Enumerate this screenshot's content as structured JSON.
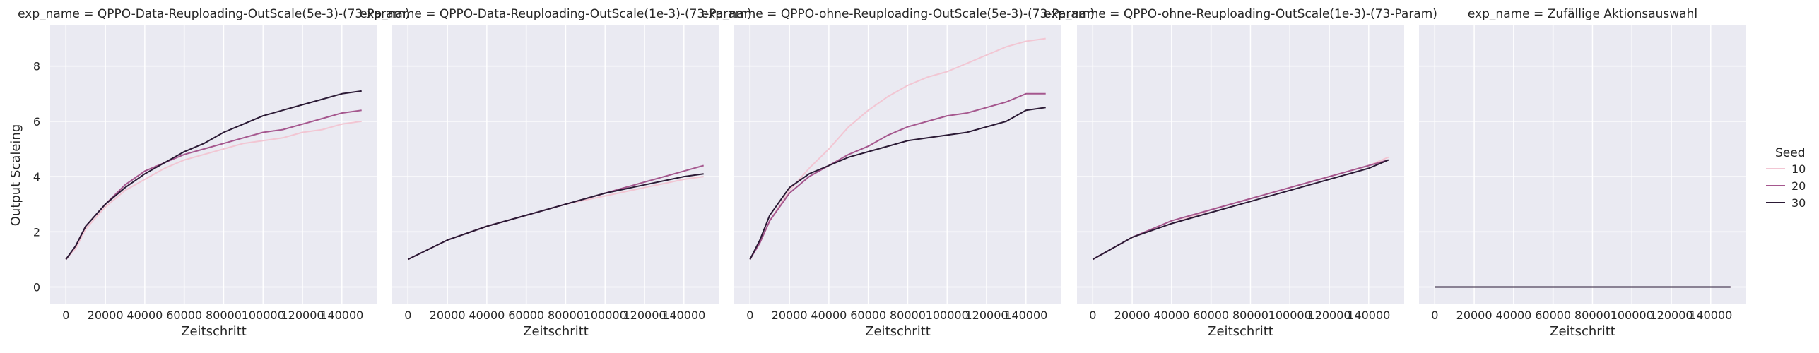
{
  "chart_data": {
    "type": "line",
    "ylabel": "Output Scaleing",
    "xlabel": "Zeitschritt",
    "xlim": [
      -8000,
      158000
    ],
    "ylim": [
      -0.6,
      9.5
    ],
    "xticks": [
      0,
      20000,
      40000,
      60000,
      80000,
      100000,
      120000,
      140000
    ],
    "yticks": [
      0,
      2,
      4,
      6,
      8
    ],
    "grid": true,
    "legend": {
      "title": "Seed",
      "placement": "right",
      "entries": [
        {
          "label": "10",
          "color": "#f2c6d3"
        },
        {
          "label": "20",
          "color": "#a5578e"
        },
        {
          "label": "30",
          "color": "#2b1a35"
        }
      ]
    },
    "panels": [
      {
        "title": "exp_name = QPPO-Data-Reuploading-OutScale(5e-3)-(73-Param)",
        "series": [
          {
            "name": "10",
            "x": [
              0,
              5000,
              10000,
              20000,
              30000,
              40000,
              50000,
              60000,
              70000,
              80000,
              90000,
              100000,
              110000,
              120000,
              130000,
              140000,
              150000
            ],
            "y": [
              1.0,
              1.4,
              2.1,
              2.9,
              3.5,
              3.9,
              4.3,
              4.6,
              4.8,
              5.0,
              5.2,
              5.3,
              5.4,
              5.6,
              5.7,
              5.9,
              6.0
            ]
          },
          {
            "name": "20",
            "x": [
              0,
              5000,
              10000,
              20000,
              30000,
              40000,
              50000,
              60000,
              70000,
              80000,
              90000,
              100000,
              110000,
              120000,
              130000,
              140000,
              150000
            ],
            "y": [
              1.0,
              1.5,
              2.2,
              3.0,
              3.7,
              4.2,
              4.5,
              4.8,
              5.0,
              5.2,
              5.4,
              5.6,
              5.7,
              5.9,
              6.1,
              6.3,
              6.4
            ]
          },
          {
            "name": "30",
            "x": [
              0,
              5000,
              10000,
              20000,
              30000,
              40000,
              50000,
              60000,
              70000,
              80000,
              90000,
              100000,
              110000,
              120000,
              130000,
              140000,
              150000
            ],
            "y": [
              1.0,
              1.5,
              2.2,
              3.0,
              3.6,
              4.1,
              4.5,
              4.9,
              5.2,
              5.6,
              5.9,
              6.2,
              6.4,
              6.6,
              6.8,
              7.0,
              7.1
            ]
          }
        ]
      },
      {
        "title": "exp_name = QPPO-Data-Reuploading-OutScale(1e-3)-(73-Param)",
        "series": [
          {
            "name": "10",
            "x": [
              0,
              20000,
              40000,
              60000,
              80000,
              100000,
              120000,
              140000,
              150000
            ],
            "y": [
              1.0,
              1.7,
              2.2,
              2.6,
              3.0,
              3.3,
              3.6,
              3.9,
              4.0
            ]
          },
          {
            "name": "20",
            "x": [
              0,
              20000,
              40000,
              60000,
              80000,
              100000,
              120000,
              140000,
              150000
            ],
            "y": [
              1.0,
              1.7,
              2.2,
              2.6,
              3.0,
              3.4,
              3.8,
              4.2,
              4.4
            ]
          },
          {
            "name": "30",
            "x": [
              0,
              20000,
              40000,
              60000,
              80000,
              100000,
              120000,
              140000,
              150000
            ],
            "y": [
              1.0,
              1.7,
              2.2,
              2.6,
              3.0,
              3.4,
              3.7,
              4.0,
              4.1
            ]
          }
        ]
      },
      {
        "title": "exp_name = QPPO-ohne-Reuploading-OutScale(5e-3)-(73-Param)",
        "series": [
          {
            "name": "10",
            "x": [
              0,
              5000,
              10000,
              20000,
              30000,
              40000,
              50000,
              60000,
              70000,
              80000,
              90000,
              100000,
              110000,
              120000,
              130000,
              140000,
              150000
            ],
            "y": [
              1.0,
              1.6,
              2.4,
              3.5,
              4.3,
              5.0,
              5.8,
              6.4,
              6.9,
              7.3,
              7.6,
              7.8,
              8.1,
              8.4,
              8.7,
              8.9,
              9.0
            ]
          },
          {
            "name": "20",
            "x": [
              0,
              5000,
              10000,
              20000,
              30000,
              40000,
              50000,
              60000,
              70000,
              80000,
              90000,
              100000,
              110000,
              120000,
              130000,
              140000,
              150000
            ],
            "y": [
              1.0,
              1.6,
              2.4,
              3.4,
              4.0,
              4.4,
              4.8,
              5.1,
              5.5,
              5.8,
              6.0,
              6.2,
              6.3,
              6.5,
              6.7,
              7.0,
              7.0
            ]
          },
          {
            "name": "30",
            "x": [
              0,
              5000,
              10000,
              20000,
              30000,
              40000,
              50000,
              60000,
              70000,
              80000,
              90000,
              100000,
              110000,
              120000,
              130000,
              140000,
              150000
            ],
            "y": [
              1.0,
              1.7,
              2.6,
              3.6,
              4.1,
              4.4,
              4.7,
              4.9,
              5.1,
              5.3,
              5.4,
              5.5,
              5.6,
              5.8,
              6.0,
              6.4,
              6.5
            ]
          }
        ]
      },
      {
        "title": "exp_name = QPPO-ohne-Reuploading-OutScale(1e-3)-(73-Param)",
        "series": [
          {
            "name": "10",
            "x": [
              0,
              20000,
              40000,
              60000,
              80000,
              100000,
              120000,
              140000,
              150000
            ],
            "y": [
              1.0,
              1.8,
              2.3,
              2.8,
              3.2,
              3.6,
              4.0,
              4.4,
              4.7
            ]
          },
          {
            "name": "20",
            "x": [
              0,
              20000,
              40000,
              60000,
              80000,
              100000,
              120000,
              140000,
              150000
            ],
            "y": [
              1.0,
              1.8,
              2.4,
              2.8,
              3.2,
              3.6,
              4.0,
              4.4,
              4.6
            ]
          },
          {
            "name": "30",
            "x": [
              0,
              20000,
              40000,
              60000,
              80000,
              100000,
              120000,
              140000,
              150000
            ],
            "y": [
              1.0,
              1.8,
              2.3,
              2.7,
              3.1,
              3.5,
              3.9,
              4.3,
              4.6
            ]
          }
        ]
      },
      {
        "title": "exp_name = Zufällige Aktionsauswahl",
        "series": [
          {
            "name": "10",
            "x": [
              0,
              150000
            ],
            "y": [
              0.0,
              0.0
            ]
          },
          {
            "name": "20",
            "x": [
              0,
              150000
            ],
            "y": [
              0.0,
              0.0
            ]
          },
          {
            "name": "30",
            "x": [
              0,
              150000
            ],
            "y": [
              0.0,
              0.0
            ]
          }
        ]
      }
    ]
  }
}
